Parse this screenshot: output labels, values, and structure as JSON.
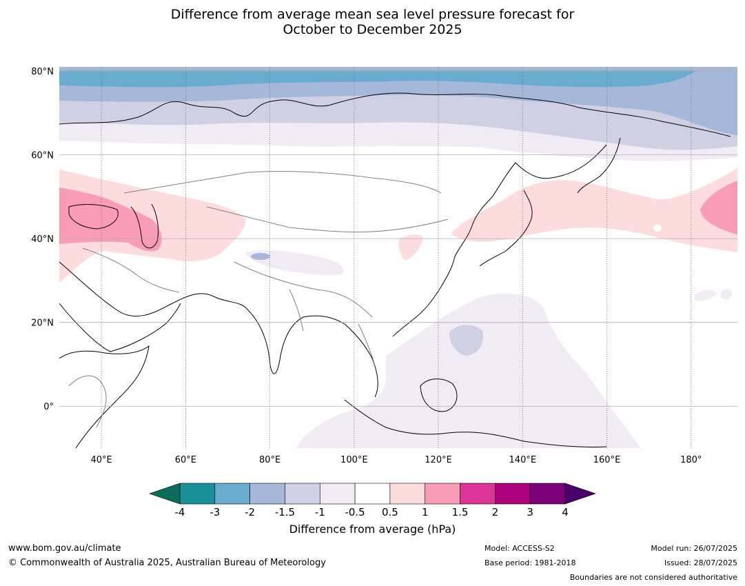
{
  "title": {
    "line1": "Difference from average mean sea level pressure forecast for",
    "line2": "October to December 2025"
  },
  "map": {
    "lat_labels": [
      "80°N",
      "60°N",
      "40°N",
      "20°N",
      "0°"
    ],
    "lon_labels": [
      "40°E",
      "60°E",
      "80°E",
      "100°E",
      "120°E",
      "140°E",
      "160°E",
      "180°"
    ],
    "lat_values": [
      80,
      60,
      40,
      20,
      0
    ],
    "lon_values": [
      40,
      60,
      80,
      100,
      120,
      140,
      160,
      180
    ],
    "extent": {
      "lon_min": 30,
      "lon_max": 191,
      "lat_min": -10,
      "lat_max": 81
    }
  },
  "colorbar": {
    "ticks": [
      "-4",
      "-3",
      "-2",
      "-1.5",
      "-1",
      "-0.5",
      "0.5",
      "1",
      "1.5",
      "2",
      "3",
      "4"
    ],
    "colors": [
      "#0b6e5c",
      "#1b8f98",
      "#6aabd0",
      "#a5b8d9",
      "#cfd0e4",
      "#f1ebf4",
      "#ffffff",
      "#fddcdd",
      "#f99cb7",
      "#dd3497",
      "#ae017e",
      "#7a0177",
      "#49006a"
    ],
    "label": "Difference from average (hPa)"
  },
  "footer": {
    "url": "www.bom.gov.au/climate",
    "copyright": "© Commonwealth of Australia 2025, Australian Bureau of Meteorology",
    "model": "Model: ACCESS-S2",
    "base_period": "Base period: 1981-2018",
    "model_run": "Model run: 26/07/2025",
    "issued": "Issued: 28/07/2025",
    "disclaimer": "Boundaries are not considered authoritative"
  }
}
